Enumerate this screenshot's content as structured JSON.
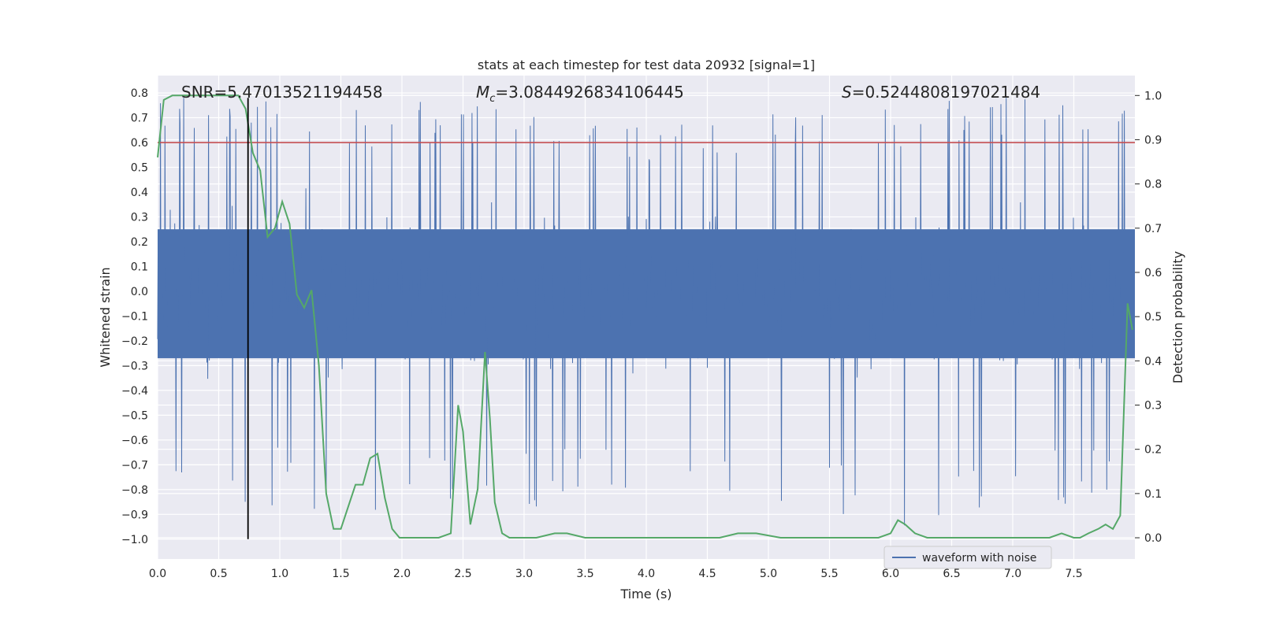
{
  "chart_data": {
    "type": "line",
    "title": "stats at each timestep for test data 20932 [signal=1]",
    "xlabel": "Time (s)",
    "ylabel": "Whitened strain",
    "ylabel_right": "Detection probability",
    "xlim": [
      0.0,
      8.0
    ],
    "ylim": [
      -1.08,
      0.87
    ],
    "ylim_right": [
      -0.048,
      1.045
    ],
    "xticks": [
      "0.0",
      "0.5",
      "1.0",
      "1.5",
      "2.0",
      "2.5",
      "3.0",
      "3.5",
      "4.0",
      "4.5",
      "5.0",
      "5.5",
      "6.0",
      "6.5",
      "7.0",
      "7.5"
    ],
    "yticks": [
      "0.8",
      "0.7",
      "0.6",
      "0.5",
      "0.4",
      "0.3",
      "0.2",
      "0.1",
      "0.0",
      "-0.1",
      "-0.2",
      "-0.3",
      "-0.4",
      "-0.5",
      "-0.6",
      "-0.7",
      "-0.8",
      "-0.9",
      "-1.0"
    ],
    "yticks_right": [
      "1.0",
      "0.9",
      "0.8",
      "0.7",
      "0.6",
      "0.5",
      "0.4",
      "0.3",
      "0.2",
      "0.1",
      "0.0"
    ],
    "annotations": {
      "snr": "SNR=5.47013521194458",
      "mc_symbol": "M",
      "mc_sub": "c",
      "mc_value": "=3.0844926834106445",
      "s_symbol": "S",
      "s_value": "=0.5244808197021484"
    },
    "threshold_line": {
      "value": 0.6,
      "axis": "left",
      "color": "#c44e52"
    },
    "event_line": {
      "x": 0.74,
      "y_from": -1.0,
      "y_to": 0.78,
      "color": "#000000"
    },
    "legend": {
      "label": "waveform with noise",
      "location": "lower-right"
    },
    "series": [
      {
        "name": "waveform with noise",
        "axis": "left",
        "color": "#4c72b0",
        "style": "dense noise, core band approx ±0.25, peaks to 0.78 / -1.0",
        "envelope_top": [
          0.62,
          0.58,
          0.56,
          0.55,
          0.56,
          0.55,
          0.52,
          0.5,
          0.5,
          0.52,
          0.55,
          0.55,
          0.56,
          0.58,
          0.56,
          0.55
        ],
        "envelope_bottom": [
          -0.65,
          -0.6,
          -0.58,
          -0.62,
          -0.6,
          -0.65,
          -0.6,
          -0.58,
          -0.6,
          -0.62,
          -0.6,
          -0.62,
          -0.7,
          -0.62,
          -0.6,
          -0.6
        ]
      },
      {
        "name": "detection probability",
        "axis": "right",
        "color": "#55a868",
        "x": [
          0.0,
          0.05,
          0.12,
          0.2,
          0.3,
          0.4,
          0.5,
          0.6,
          0.66,
          0.72,
          0.78,
          0.84,
          0.9,
          0.96,
          1.02,
          1.08,
          1.14,
          1.2,
          1.26,
          1.32,
          1.38,
          1.44,
          1.5,
          1.56,
          1.62,
          1.68,
          1.74,
          1.8,
          1.86,
          1.92,
          1.98,
          2.04,
          2.1,
          2.2,
          2.3,
          2.4,
          2.46,
          2.5,
          2.56,
          2.62,
          2.68,
          2.72,
          2.76,
          2.82,
          2.88,
          2.96,
          3.1,
          3.25,
          3.35,
          3.5,
          3.8,
          4.2,
          4.6,
          4.75,
          4.9,
          5.1,
          5.4,
          5.7,
          5.9,
          6.0,
          6.06,
          6.12,
          6.2,
          6.3,
          6.4,
          6.6,
          6.8,
          7.0,
          7.2,
          7.3,
          7.4,
          7.5,
          7.55,
          7.62,
          7.7,
          7.76,
          7.82,
          7.88,
          7.94,
          7.98
        ],
        "values": [
          0.86,
          0.99,
          1.0,
          1.0,
          1.0,
          1.0,
          1.0,
          1.0,
          1.0,
          0.97,
          0.87,
          0.83,
          0.68,
          0.7,
          0.76,
          0.71,
          0.55,
          0.52,
          0.56,
          0.39,
          0.1,
          0.02,
          0.02,
          0.07,
          0.12,
          0.12,
          0.18,
          0.19,
          0.09,
          0.02,
          0.0,
          0.0,
          0.0,
          0.0,
          0.0,
          0.01,
          0.3,
          0.24,
          0.03,
          0.11,
          0.42,
          0.27,
          0.08,
          0.01,
          0.0,
          0.0,
          0.0,
          0.01,
          0.01,
          0.0,
          0.0,
          0.0,
          0.0,
          0.01,
          0.01,
          0.0,
          0.0,
          0.0,
          0.0,
          0.01,
          0.04,
          0.03,
          0.01,
          0.0,
          0.0,
          0.0,
          0.0,
          0.0,
          0.0,
          0.0,
          0.01,
          0.0,
          0.0,
          0.01,
          0.02,
          0.03,
          0.02,
          0.05,
          0.53,
          0.47
        ]
      }
    ]
  }
}
